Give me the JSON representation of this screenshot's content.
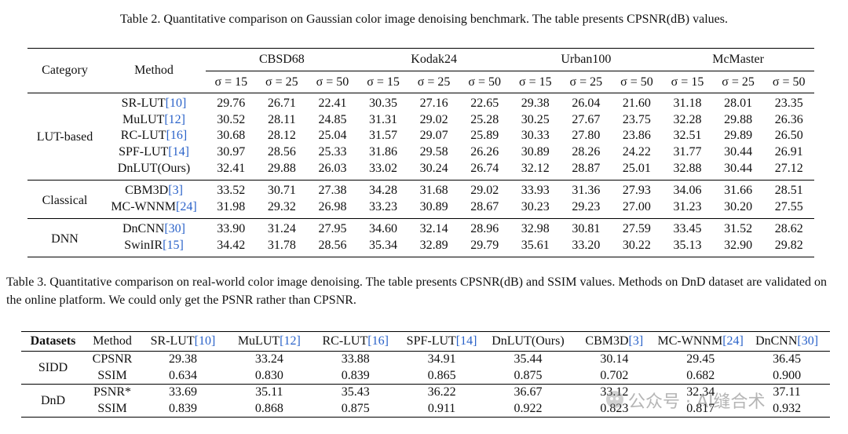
{
  "table2": {
    "caption": "Table 2. Quantitative comparison on Gaussian color image denoising benchmark. The table presents CPSNR(dB) values.",
    "header": {
      "category": "Category",
      "method": "Method",
      "datasets": [
        "CBSD68",
        "Kodak24",
        "Urban100",
        "McMaster"
      ],
      "sigmas": [
        "σ = 15",
        "σ = 25",
        "σ = 50"
      ]
    },
    "groups": [
      {
        "category": "LUT-based",
        "rows": [
          {
            "method": "SR-LUT",
            "ref": "[10]",
            "values": [
              "29.76",
              "26.71",
              "22.41",
              "30.35",
              "27.16",
              "22.65",
              "29.38",
              "26.04",
              "21.60",
              "31.18",
              "28.01",
              "23.35"
            ]
          },
          {
            "method": "MuLUT",
            "ref": "[12]",
            "values": [
              "30.52",
              "28.11",
              "24.85",
              "31.31",
              "29.02",
              "25.28",
              "30.25",
              "27.67",
              "23.75",
              "32.28",
              "29.88",
              "26.36"
            ]
          },
          {
            "method": "RC-LUT",
            "ref": "[16]",
            "values": [
              "30.68",
              "28.12",
              "25.04",
              "31.57",
              "29.07",
              "25.89",
              "30.33",
              "27.80",
              "23.86",
              "32.51",
              "29.89",
              "26.50"
            ]
          },
          {
            "method": "SPF-LUT",
            "ref": "[14]",
            "values": [
              "30.97",
              "28.56",
              "25.33",
              "31.86",
              "29.58",
              "26.26",
              "30.89",
              "28.26",
              "24.22",
              "31.77",
              "30.44",
              "26.91"
            ]
          },
          {
            "method": "DnLUT(Ours)",
            "values": [
              "32.41",
              "29.88",
              "26.03",
              "33.02",
              "30.24",
              "26.74",
              "32.12",
              "28.87",
              "25.01",
              "32.88",
              "30.44",
              "27.12"
            ]
          }
        ]
      },
      {
        "category": "Classical",
        "rows": [
          {
            "method": "CBM3D",
            "ref": "[3]",
            "values": [
              "33.52",
              "30.71",
              "27.38",
              "34.28",
              "31.68",
              "29.02",
              "33.93",
              "31.36",
              "27.93",
              "34.06",
              "31.66",
              "28.51"
            ]
          },
          {
            "method": "MC-WNNM",
            "ref": "[24]",
            "values": [
              "31.98",
              "29.32",
              "26.98",
              "33.23",
              "30.89",
              "28.67",
              "30.23",
              "29.23",
              "27.00",
              "31.23",
              "30.20",
              "27.55"
            ]
          }
        ]
      },
      {
        "category": "DNN",
        "rows": [
          {
            "method": "DnCNN",
            "ref": "[30]",
            "values": [
              "33.90",
              "31.24",
              "27.95",
              "34.60",
              "32.14",
              "28.96",
              "32.98",
              "30.81",
              "27.59",
              "33.45",
              "31.52",
              "28.62"
            ]
          },
          {
            "method": "SwinIR",
            "ref": "[15]",
            "values": [
              "34.42",
              "31.78",
              "28.56",
              "35.34",
              "32.89",
              "29.79",
              "35.61",
              "33.20",
              "30.22",
              "35.13",
              "32.90",
              "29.82"
            ]
          }
        ]
      }
    ]
  },
  "table3": {
    "caption": "Table 3. Quantitative comparison on real-world color image denoising. The table presents CPSNR(dB) and SSIM values. Methods on DnD dataset are validated on the online platform. We could only get the PSNR rather than CPSNR.",
    "header": {
      "datasets": "Datasets",
      "method": "Method",
      "methods": [
        {
          "name": "SR-LUT",
          "ref": "[10]"
        },
        {
          "name": "MuLUT",
          "ref": "[12]"
        },
        {
          "name": "RC-LUT",
          "ref": "[16]"
        },
        {
          "name": "SPF-LUT",
          "ref": "[14]"
        },
        {
          "name": "DnLUT(Ours)"
        },
        {
          "name": "CBM3D",
          "ref": "[3]"
        },
        {
          "name": "MC-WNNM",
          "ref": "[24]"
        },
        {
          "name": "DnCNN",
          "ref": "[30]"
        }
      ]
    },
    "groups": [
      {
        "dataset": "SIDD",
        "rows": [
          {
            "metric": "CPSNR",
            "values": [
              "29.38",
              "33.24",
              "33.88",
              "34.91",
              "35.44",
              "30.14",
              "29.45",
              "36.45"
            ]
          },
          {
            "metric": "SSIM",
            "values": [
              "0.634",
              "0.830",
              "0.839",
              "0.865",
              "0.875",
              "0.702",
              "0.682",
              "0.900"
            ]
          }
        ]
      },
      {
        "dataset": "DnD",
        "rows": [
          {
            "metric": "PSNR*",
            "values": [
              "33.69",
              "35.11",
              "35.43",
              "36.22",
              "36.67",
              "33.12",
              "32.34",
              "37.11"
            ]
          },
          {
            "metric": "SSIM",
            "values": [
              "0.839",
              "0.868",
              "0.875",
              "0.911",
              "0.922",
              "0.823",
              "0.817",
              "0.932"
            ]
          }
        ]
      }
    ]
  },
  "watermark": "公众号 · AI缝合术"
}
